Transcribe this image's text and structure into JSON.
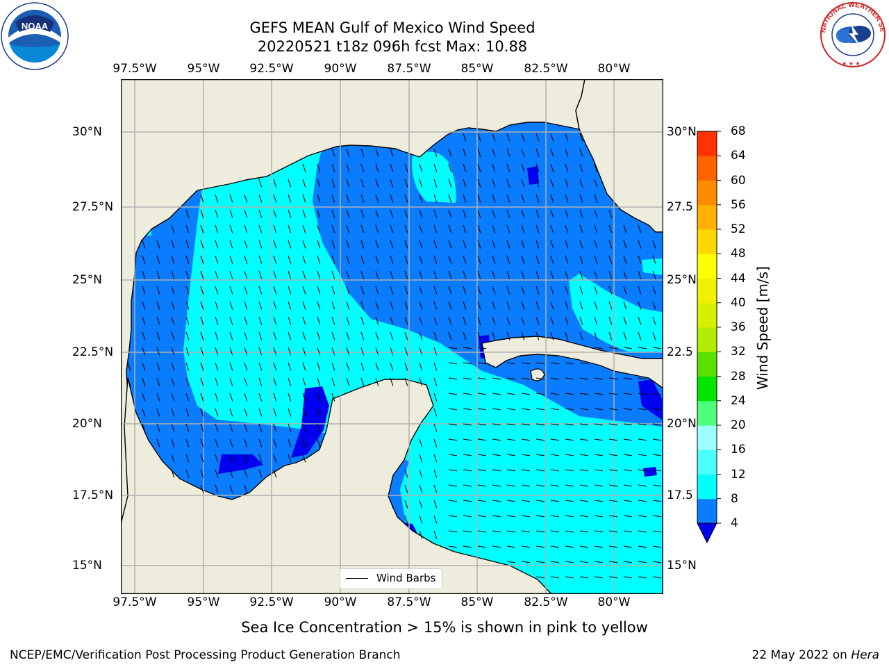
{
  "title_line1": "GEFS MEAN Gulf of Mexico Wind Speed",
  "title_line2": "20220521 t18z 096h fcst   Max: 10.88",
  "lon_labels": [
    "97.5°W",
    "95°W",
    "92.5°W",
    "90°W",
    "87.5°W",
    "85°W",
    "82.5°W",
    "80°W"
  ],
  "lat_labels": [
    "30°N",
    "27.5°N",
    "25°N",
    "22.5°N",
    "20°N",
    "17.5°N",
    "15°N"
  ],
  "lat_labels_right": [
    "30°N",
    "27.5",
    "25°N",
    "22.5",
    "20°N",
    "17.5",
    "15°N"
  ],
  "colorbar": {
    "label": "Wind Speed [m/s]",
    "ticks": [
      "4",
      "8",
      "12",
      "16",
      "20",
      "24",
      "28",
      "32",
      "36",
      "40",
      "44",
      "48",
      "52",
      "56",
      "60",
      "64",
      "68"
    ],
    "colors": [
      "#0a7cff",
      "#00ffff",
      "#4cffff",
      "#9effff",
      "#4dff7b",
      "#00e400",
      "#5be000",
      "#b2ec00",
      "#d7f000",
      "#f0f000",
      "#ffff00",
      "#ffd700",
      "#ffb000",
      "#ff8c00",
      "#ff6400",
      "#ff3200",
      "#ff0000"
    ],
    "under_color": "#0000ee"
  },
  "legend_label": "Wind Barbs",
  "sea_ice_note": "Sea Ice Concentration > 15% is shown in pink to yellow",
  "footer_left": "NCEP/EMC/Verification Post Processing Product Generation Branch",
  "footer_date": "22 May 2022 on ",
  "footer_machine": "Hera",
  "logo_noaa": "NOAA",
  "logo_nws_text": "NATIONAL WEATHER SERVICE",
  "colors": {
    "land": "#eeecdc",
    "grid": "#b0b0b0",
    "coast": "#000000"
  }
}
